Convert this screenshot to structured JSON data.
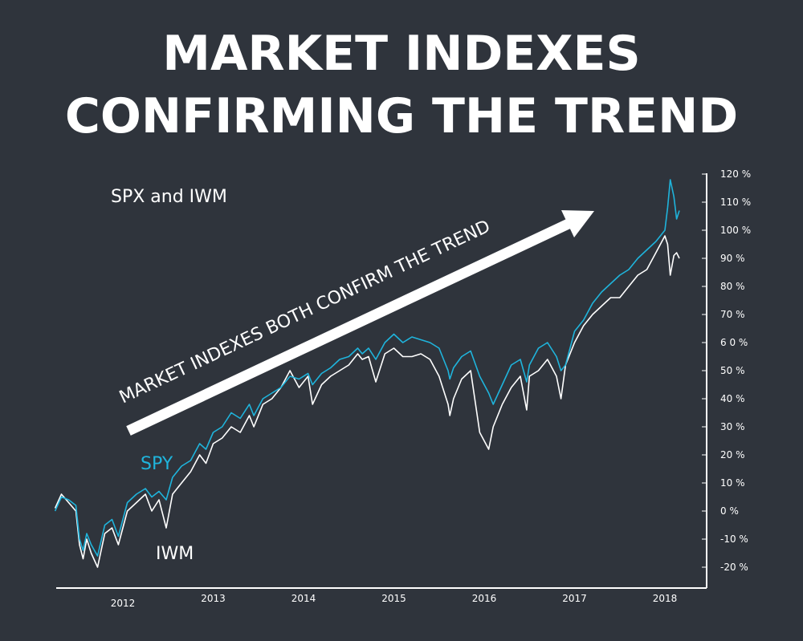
{
  "title_line1": "MARKET INDEXES",
  "title_line2": "CONFIRMING THE TREND",
  "chart_data": {
    "type": "line",
    "subtitle": "SPX and  IWM",
    "annotation": "MARKET INDEXES BOTH CONFIRM THE TREND",
    "ylim": [
      -25,
      125
    ],
    "y_axis_position": "right",
    "grid": false,
    "y_ticks": [
      "-20 %",
      "-10 %",
      "0 %",
      "10 %",
      "20 %",
      "30 %",
      "40 %",
      "50 %",
      "6 0 %",
      "70 %",
      "80 %",
      "90 %",
      "100 %",
      "110 %",
      "120 %"
    ],
    "x_ticks": [
      "2012",
      "2013",
      "2014",
      "2015",
      "2016",
      "2017",
      "2018"
    ],
    "series": [
      {
        "name": "SPY",
        "color": "#1fb4dc",
        "x": [
          2011.25,
          2011.32,
          2011.4,
          2011.48,
          2011.52,
          2011.56,
          2011.6,
          2011.65,
          2011.72,
          2011.8,
          2011.88,
          2011.95,
          2012.05,
          2012.15,
          2012.25,
          2012.32,
          2012.4,
          2012.48,
          2012.55,
          2012.65,
          2012.75,
          2012.85,
          2012.92,
          2013.0,
          2013.1,
          2013.2,
          2013.3,
          2013.4,
          2013.45,
          2013.55,
          2013.65,
          2013.75,
          2013.85,
          2013.95,
          2014.05,
          2014.1,
          2014.2,
          2014.3,
          2014.4,
          2014.5,
          2014.6,
          2014.65,
          2014.72,
          2014.8,
          2014.9,
          2015.0,
          2015.1,
          2015.2,
          2015.3,
          2015.4,
          2015.5,
          2015.6,
          2015.62,
          2015.66,
          2015.75,
          2015.85,
          2015.95,
          2016.05,
          2016.1,
          2016.2,
          2016.3,
          2016.4,
          2016.47,
          2016.5,
          2016.6,
          2016.7,
          2016.8,
          2016.85,
          2016.9,
          2017.0,
          2017.1,
          2017.2,
          2017.3,
          2017.4,
          2017.5,
          2017.6,
          2017.7,
          2017.8,
          2017.9,
          2018.0,
          2018.03,
          2018.06,
          2018.1,
          2018.13,
          2018.16
        ],
        "values": [
          0,
          5,
          4,
          2,
          -10,
          -14,
          -8,
          -12,
          -16,
          -5,
          -3,
          -9,
          3,
          6,
          8,
          5,
          7,
          4,
          12,
          16,
          18,
          24,
          22,
          28,
          30,
          35,
          33,
          38,
          34,
          40,
          42,
          44,
          48,
          47,
          49,
          45,
          49,
          51,
          54,
          55,
          58,
          56,
          58,
          54,
          60,
          63,
          60,
          62,
          61,
          60,
          58,
          50,
          47,
          51,
          55,
          57,
          48,
          42,
          38,
          45,
          52,
          54,
          46,
          52,
          58,
          60,
          55,
          50,
          52,
          64,
          68,
          74,
          78,
          81,
          84,
          86,
          90,
          93,
          96,
          100,
          108,
          118,
          112,
          104,
          107
        ]
      },
      {
        "name": "IWM",
        "color": "#ffffff",
        "x": [
          2011.25,
          2011.32,
          2011.4,
          2011.48,
          2011.52,
          2011.56,
          2011.6,
          2011.65,
          2011.72,
          2011.8,
          2011.88,
          2011.95,
          2012.05,
          2012.15,
          2012.25,
          2012.32,
          2012.4,
          2012.48,
          2012.55,
          2012.65,
          2012.75,
          2012.85,
          2012.92,
          2013.0,
          2013.1,
          2013.2,
          2013.3,
          2013.4,
          2013.45,
          2013.55,
          2013.65,
          2013.75,
          2013.85,
          2013.95,
          2014.05,
          2014.1,
          2014.2,
          2014.3,
          2014.4,
          2014.5,
          2014.6,
          2014.65,
          2014.72,
          2014.8,
          2014.9,
          2015.0,
          2015.1,
          2015.2,
          2015.3,
          2015.4,
          2015.5,
          2015.6,
          2015.62,
          2015.66,
          2015.75,
          2015.85,
          2015.95,
          2016.05,
          2016.1,
          2016.2,
          2016.3,
          2016.4,
          2016.47,
          2016.5,
          2016.6,
          2016.7,
          2016.8,
          2016.85,
          2016.9,
          2017.0,
          2017.1,
          2017.2,
          2017.3,
          2017.4,
          2017.5,
          2017.6,
          2017.7,
          2017.8,
          2017.9,
          2018.0,
          2018.03,
          2018.06,
          2018.1,
          2018.13,
          2018.16
        ],
        "values": [
          1,
          6,
          3,
          0,
          -12,
          -17,
          -10,
          -15,
          -20,
          -8,
          -6,
          -12,
          0,
          3,
          6,
          0,
          4,
          -6,
          6,
          10,
          14,
          20,
          17,
          24,
          26,
          30,
          28,
          34,
          30,
          38,
          40,
          44,
          50,
          44,
          48,
          38,
          45,
          48,
          50,
          52,
          56,
          54,
          55,
          46,
          56,
          58,
          55,
          55,
          56,
          54,
          48,
          38,
          34,
          40,
          47,
          50,
          28,
          22,
          30,
          38,
          44,
          48,
          36,
          48,
          50,
          54,
          48,
          40,
          52,
          60,
          66,
          70,
          73,
          76,
          76,
          80,
          84,
          86,
          92,
          98,
          95,
          84,
          91,
          92,
          90
        ]
      }
    ]
  }
}
